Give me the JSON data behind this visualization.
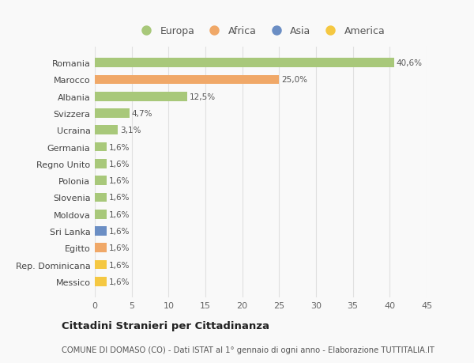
{
  "categories": [
    "Messico",
    "Rep. Dominicana",
    "Egitto",
    "Sri Lanka",
    "Moldova",
    "Slovenia",
    "Polonia",
    "Regno Unito",
    "Germania",
    "Ucraina",
    "Svizzera",
    "Albania",
    "Marocco",
    "Romania"
  ],
  "values": [
    1.6,
    1.6,
    1.6,
    1.6,
    1.6,
    1.6,
    1.6,
    1.6,
    1.6,
    3.1,
    4.7,
    12.5,
    25.0,
    40.6
  ],
  "colors": [
    "#f5c842",
    "#f5c842",
    "#f0a868",
    "#6b8ec4",
    "#a8c87a",
    "#a8c87a",
    "#a8c87a",
    "#a8c87a",
    "#a8c87a",
    "#a8c87a",
    "#a8c87a",
    "#a8c87a",
    "#f0a868",
    "#a8c87a"
  ],
  "labels": [
    "1,6%",
    "1,6%",
    "1,6%",
    "1,6%",
    "1,6%",
    "1,6%",
    "1,6%",
    "1,6%",
    "1,6%",
    "3,1%",
    "4,7%",
    "12,5%",
    "25,0%",
    "40,6%"
  ],
  "legend_names": [
    "Europa",
    "Africa",
    "Asia",
    "America"
  ],
  "legend_colors": [
    "#a8c87a",
    "#f0a868",
    "#6b8ec4",
    "#f5c842"
  ],
  "title": "Cittadini Stranieri per Cittadinanza",
  "subtitle": "COMUNE DI DOMASO (CO) - Dati ISTAT al 1° gennaio di ogni anno - Elaborazione TUTTITALIA.IT",
  "xlim": [
    0,
    45
  ],
  "xticks": [
    0,
    5,
    10,
    15,
    20,
    25,
    30,
    35,
    40,
    45
  ],
  "background_color": "#f9f9f9",
  "grid_color": "#e0e0e0",
  "bar_height": 0.55
}
